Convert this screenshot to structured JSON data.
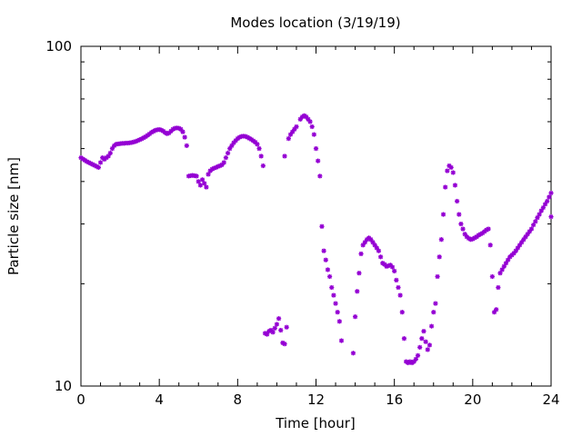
{
  "chart_data": {
    "type": "scatter",
    "title": "Modes location (3/19/19)",
    "xlabel": "Time [hour]",
    "ylabel": "Particle size [nm]",
    "xlim": [
      0,
      24
    ],
    "ylim": [
      10,
      100
    ],
    "yscale": "log",
    "grid": false,
    "legend": "none",
    "marker_color": "#9400d3",
    "x_ticks": [
      0,
      4,
      8,
      12,
      16,
      20,
      24
    ],
    "x_tick_labels": [
      "0",
      "4",
      "8",
      "12",
      "16",
      "20",
      "24"
    ],
    "y_ticks": [
      10,
      100
    ],
    "y_tick_labels": [
      "10",
      "100"
    ],
    "series": [
      {
        "points": [
          [
            0.0,
            47.0
          ],
          [
            0.1,
            46.6
          ],
          [
            0.2,
            46.2
          ],
          [
            0.3,
            45.8
          ],
          [
            0.4,
            45.5
          ],
          [
            0.5,
            45.2
          ],
          [
            0.6,
            44.9
          ],
          [
            0.7,
            44.6
          ],
          [
            0.8,
            44.3
          ],
          [
            0.9,
            44.0
          ],
          [
            1.0,
            45.5
          ],
          [
            1.1,
            47.0
          ],
          [
            1.2,
            46.5
          ],
          [
            1.3,
            47.0
          ],
          [
            1.4,
            47.5
          ],
          [
            1.5,
            48.5
          ],
          [
            1.6,
            50.0
          ],
          [
            1.7,
            51.0
          ],
          [
            1.8,
            51.5
          ],
          [
            1.9,
            51.6
          ],
          [
            2.0,
            51.7
          ],
          [
            2.1,
            51.8
          ],
          [
            2.2,
            51.8
          ],
          [
            2.3,
            51.9
          ],
          [
            2.4,
            51.9
          ],
          [
            2.5,
            52.0
          ],
          [
            2.6,
            52.1
          ],
          [
            2.7,
            52.3
          ],
          [
            2.8,
            52.5
          ],
          [
            2.9,
            52.8
          ],
          [
            3.0,
            53.1
          ],
          [
            3.1,
            53.4
          ],
          [
            3.2,
            53.8
          ],
          [
            3.3,
            54.2
          ],
          [
            3.4,
            54.7
          ],
          [
            3.5,
            55.2
          ],
          [
            3.6,
            55.8
          ],
          [
            3.7,
            56.2
          ],
          [
            3.8,
            56.6
          ],
          [
            3.9,
            56.8
          ],
          [
            4.0,
            56.9
          ],
          [
            4.1,
            56.7
          ],
          [
            4.2,
            56.3
          ],
          [
            4.3,
            55.7
          ],
          [
            4.4,
            55.3
          ],
          [
            4.5,
            55.6
          ],
          [
            4.6,
            56.3
          ],
          [
            4.7,
            57.0
          ],
          [
            4.8,
            57.4
          ],
          [
            4.9,
            57.5
          ],
          [
            5.0,
            57.4
          ],
          [
            5.1,
            57.0
          ],
          [
            5.2,
            56.0
          ],
          [
            5.3,
            54.0
          ],
          [
            5.4,
            51.0
          ],
          [
            5.5,
            41.5
          ],
          [
            5.6,
            41.6
          ],
          [
            5.7,
            41.7
          ],
          [
            5.8,
            41.6
          ],
          [
            5.9,
            41.5
          ],
          [
            6.0,
            40.0
          ],
          [
            6.1,
            39.0
          ],
          [
            6.2,
            40.5
          ],
          [
            6.3,
            39.5
          ],
          [
            6.4,
            38.5
          ],
          [
            6.5,
            42.0
          ],
          [
            6.6,
            43.0
          ],
          [
            6.7,
            43.5
          ],
          [
            6.8,
            43.8
          ],
          [
            6.9,
            44.0
          ],
          [
            7.0,
            44.3
          ],
          [
            7.1,
            44.5
          ],
          [
            7.2,
            44.8
          ],
          [
            7.3,
            45.5
          ],
          [
            7.4,
            47.0
          ],
          [
            7.5,
            48.5
          ],
          [
            7.6,
            50.0
          ],
          [
            7.7,
            51.0
          ],
          [
            7.8,
            52.0
          ],
          [
            7.9,
            52.8
          ],
          [
            8.0,
            53.5
          ],
          [
            8.1,
            54.0
          ],
          [
            8.2,
            54.3
          ],
          [
            8.3,
            54.4
          ],
          [
            8.4,
            54.3
          ],
          [
            8.5,
            54.0
          ],
          [
            8.6,
            53.6
          ],
          [
            8.7,
            53.2
          ],
          [
            8.8,
            52.7
          ],
          [
            8.9,
            52.2
          ],
          [
            9.0,
            51.5
          ],
          [
            9.1,
            50.0
          ],
          [
            9.2,
            47.5
          ],
          [
            9.3,
            44.5
          ],
          [
            9.4,
            14.3
          ],
          [
            9.5,
            14.2
          ],
          [
            9.6,
            14.5
          ],
          [
            9.7,
            14.6
          ],
          [
            9.8,
            14.4
          ],
          [
            9.9,
            14.8
          ],
          [
            10.0,
            15.2
          ],
          [
            10.1,
            15.8
          ],
          [
            10.2,
            14.6
          ],
          [
            10.3,
            13.4
          ],
          [
            10.4,
            13.3
          ],
          [
            10.5,
            14.9
          ],
          [
            10.6,
            53.5
          ],
          [
            10.7,
            55.0
          ],
          [
            10.8,
            56.0
          ],
          [
            10.9,
            57.0
          ],
          [
            11.0,
            58.0
          ],
          [
            10.4,
            47.5
          ],
          [
            11.2,
            61.0
          ],
          [
            11.3,
            62.0
          ],
          [
            11.4,
            62.5
          ],
          [
            11.5,
            62.0
          ],
          [
            11.6,
            61.0
          ],
          [
            11.7,
            60.0
          ],
          [
            11.8,
            58.0
          ],
          [
            11.9,
            55.0
          ],
          [
            12.0,
            50.0
          ],
          [
            12.1,
            46.0
          ],
          [
            12.2,
            41.5
          ],
          [
            12.3,
            29.5
          ],
          [
            12.4,
            25.0
          ],
          [
            12.5,
            23.5
          ],
          [
            12.6,
            22.0
          ],
          [
            12.7,
            21.0
          ],
          [
            12.8,
            19.5
          ],
          [
            12.9,
            18.5
          ],
          [
            13.0,
            17.5
          ],
          [
            13.1,
            16.5
          ],
          [
            13.2,
            15.5
          ],
          [
            13.3,
            13.6
          ],
          [
            13.9,
            12.5
          ],
          [
            14.0,
            16.0
          ],
          [
            14.1,
            19.0
          ],
          [
            14.2,
            21.5
          ],
          [
            14.3,
            24.5
          ],
          [
            14.4,
            26.0
          ],
          [
            14.5,
            26.5
          ],
          [
            14.6,
            27.0
          ],
          [
            14.7,
            27.3
          ],
          [
            14.8,
            27.0
          ],
          [
            14.9,
            26.5
          ],
          [
            15.0,
            26.0
          ],
          [
            15.1,
            25.5
          ],
          [
            15.2,
            25.0
          ],
          [
            15.3,
            24.0
          ],
          [
            15.4,
            23.0
          ],
          [
            15.5,
            22.8
          ],
          [
            15.6,
            22.5
          ],
          [
            15.7,
            22.6
          ],
          [
            15.8,
            22.7
          ],
          [
            15.9,
            22.4
          ],
          [
            16.0,
            21.8
          ],
          [
            16.1,
            20.5
          ],
          [
            16.2,
            19.5
          ],
          [
            16.3,
            18.5
          ],
          [
            16.4,
            16.5
          ],
          [
            16.5,
            13.8
          ],
          [
            16.6,
            11.8
          ],
          [
            16.7,
            11.7
          ],
          [
            16.8,
            11.8
          ],
          [
            16.9,
            11.7
          ],
          [
            17.0,
            11.8
          ],
          [
            17.1,
            12.0
          ],
          [
            17.2,
            12.3
          ],
          [
            17.3,
            13.0
          ],
          [
            17.4,
            13.8
          ],
          [
            17.5,
            14.5
          ],
          [
            17.6,
            13.5
          ],
          [
            17.7,
            12.8
          ],
          [
            17.8,
            13.2
          ],
          [
            17.9,
            15.0
          ],
          [
            18.0,
            16.5
          ],
          [
            18.1,
            17.5
          ],
          [
            18.2,
            21.0
          ],
          [
            18.3,
            24.0
          ],
          [
            18.4,
            27.0
          ],
          [
            18.5,
            32.0
          ],
          [
            18.6,
            38.5
          ],
          [
            18.7,
            43.0
          ],
          [
            18.8,
            44.5
          ],
          [
            18.9,
            44.0
          ],
          [
            19.0,
            42.5
          ],
          [
            19.1,
            39.0
          ],
          [
            19.2,
            35.0
          ],
          [
            19.3,
            32.0
          ],
          [
            19.4,
            30.0
          ],
          [
            19.5,
            29.0
          ],
          [
            19.6,
            28.0
          ],
          [
            19.7,
            27.5
          ],
          [
            19.8,
            27.2
          ],
          [
            19.9,
            27.0
          ],
          [
            20.0,
            27.1
          ],
          [
            20.1,
            27.3
          ],
          [
            20.2,
            27.5
          ],
          [
            20.3,
            27.8
          ],
          [
            20.4,
            28.0
          ],
          [
            20.5,
            28.2
          ],
          [
            20.6,
            28.5
          ],
          [
            20.7,
            28.8
          ],
          [
            20.8,
            29.0
          ],
          [
            20.9,
            26.0
          ],
          [
            21.0,
            21.0
          ],
          [
            21.1,
            16.5
          ],
          [
            21.2,
            16.8
          ],
          [
            21.3,
            19.5
          ],
          [
            21.4,
            21.5
          ],
          [
            21.5,
            22.0
          ],
          [
            21.6,
            22.5
          ],
          [
            21.7,
            23.0
          ],
          [
            21.8,
            23.5
          ],
          [
            21.9,
            24.0
          ],
          [
            22.0,
            24.3
          ],
          [
            22.1,
            24.6
          ],
          [
            22.2,
            25.0
          ],
          [
            22.3,
            25.5
          ],
          [
            22.4,
            26.0
          ],
          [
            22.5,
            26.5
          ],
          [
            22.6,
            27.0
          ],
          [
            22.7,
            27.5
          ],
          [
            22.8,
            28.0
          ],
          [
            22.9,
            28.5
          ],
          [
            23.0,
            29.0
          ],
          [
            23.1,
            29.8
          ],
          [
            23.2,
            30.5
          ],
          [
            23.3,
            31.3
          ],
          [
            23.4,
            32.0
          ],
          [
            23.5,
            32.8
          ],
          [
            23.6,
            33.5
          ],
          [
            23.7,
            34.3
          ],
          [
            23.8,
            35.0
          ],
          [
            23.9,
            36.0
          ],
          [
            24.0,
            37.0
          ],
          [
            24.0,
            31.5
          ]
        ]
      }
    ]
  }
}
